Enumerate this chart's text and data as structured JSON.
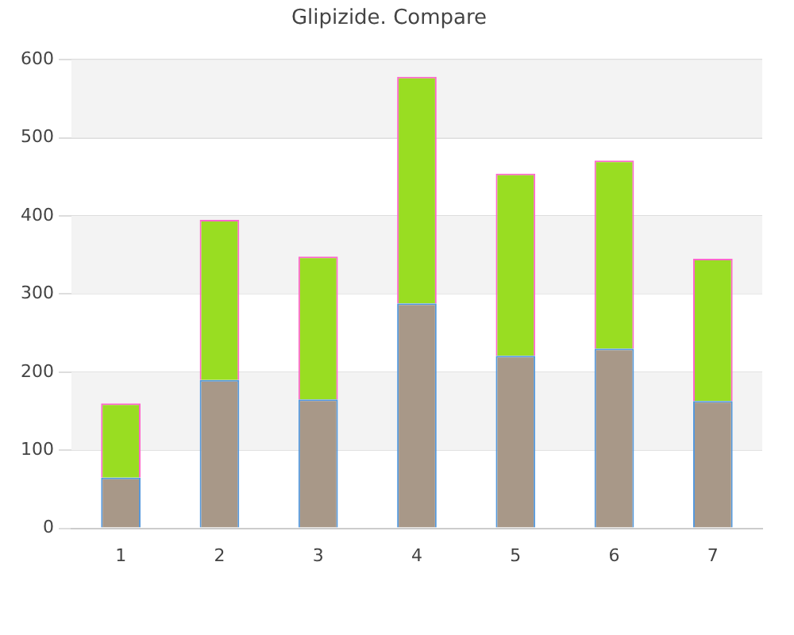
{
  "chart_data": {
    "type": "bar",
    "title": "Glipizide. Compare",
    "categories": [
      "1",
      "2",
      "3",
      "4",
      "5",
      "6",
      "7"
    ],
    "stacked": true,
    "series": [
      {
        "color": "#a89888",
        "values": [
          65,
          190,
          165,
          288,
          221,
          230,
          163
        ]
      },
      {
        "color": "#99dd22",
        "values": [
          95,
          205,
          183,
          290,
          233,
          241,
          182
        ]
      }
    ],
    "ylim": [
      0,
      600
    ],
    "yticks": [
      0,
      100,
      200,
      300,
      400,
      500,
      600
    ],
    "grid": "y",
    "legend": false
  }
}
